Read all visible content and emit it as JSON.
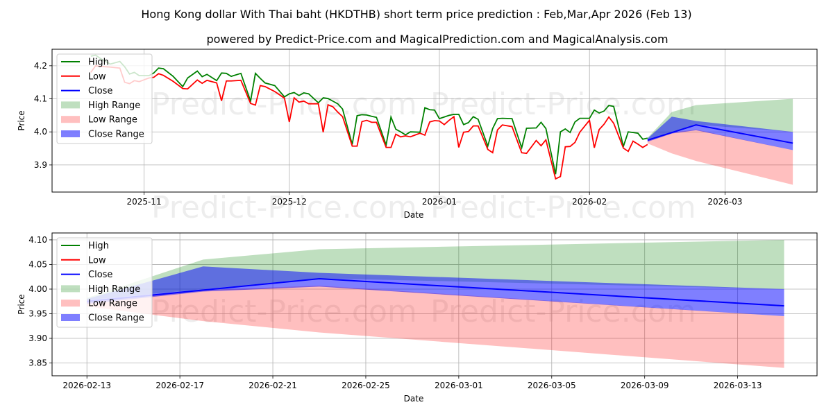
{
  "title": "Hong Kong dollar With Thai baht (HKDTHB) short term price prediction : Feb,Mar,Apr 2026 (Feb 13)",
  "subtitle": "powered by Predict-Price.com and MagicalPrediction.com and MagicalAnalysis.com",
  "watermark": "Predict-Price.com",
  "colors": {
    "high": "#008000",
    "low": "#ff0000",
    "close": "#0000ff",
    "high_range": "#008000",
    "low_range": "#ff0000",
    "close_range": "#0000ff"
  },
  "legend": [
    "High",
    "Low",
    "Close",
    "High Range",
    "Low Range",
    "Close Range"
  ],
  "chart_data": [
    {
      "type": "line",
      "xlabel": "Date",
      "ylabel": "Price",
      "xlim": [
        "2025-10-13",
        "2026-03-20"
      ],
      "ylim": [
        3.818,
        4.25
      ],
      "yticks": [
        3.9,
        4.0,
        4.1,
        4.2
      ],
      "ytick_labels": [
        "3.9",
        "4.0",
        "4.1",
        "4.2"
      ],
      "xticks": [
        "2025-11-01",
        "2025-12-01",
        "2026-01-01",
        "2026-02-01",
        "2026-03-01"
      ],
      "xtick_labels": [
        "2025-11",
        "2025-12",
        "2026-01",
        "2026-02",
        "2026-03"
      ],
      "grid": true,
      "legend_position": "top-left",
      "history": [
        [
          "2025-10-21",
          4.229,
          4.18
        ],
        [
          "2025-10-22",
          4.232,
          4.2
        ],
        [
          "2025-10-23",
          4.222,
          4.198
        ],
        [
          "2025-10-25",
          4.205,
          4.196
        ],
        [
          "2025-10-27",
          4.213,
          4.193
        ],
        [
          "2025-10-28",
          4.197,
          4.15
        ],
        [
          "2025-10-29",
          4.175,
          4.146
        ],
        [
          "2025-10-30",
          4.18,
          4.155
        ],
        [
          "2025-10-31",
          4.17,
          4.152
        ],
        [
          "2025-11-02",
          4.17,
          4.163
        ],
        [
          "2025-11-03",
          4.178,
          4.165
        ],
        [
          "2025-11-04",
          4.193,
          4.176
        ],
        [
          "2025-11-05",
          4.191,
          4.171
        ],
        [
          "2025-11-07",
          4.168,
          4.153
        ],
        [
          "2025-11-09",
          4.137,
          4.131
        ],
        [
          "2025-11-10",
          4.163,
          4.13
        ],
        [
          "2025-11-12",
          4.184,
          4.157
        ],
        [
          "2025-11-13",
          4.167,
          4.147
        ],
        [
          "2025-11-14",
          4.174,
          4.156
        ],
        [
          "2025-11-16",
          4.155,
          4.148
        ],
        [
          "2025-11-17",
          4.178,
          4.094
        ],
        [
          "2025-11-18",
          4.177,
          4.154
        ],
        [
          "2025-11-19",
          4.168,
          4.154
        ],
        [
          "2025-11-21",
          4.177,
          4.156
        ],
        [
          "2025-11-23",
          4.093,
          4.086
        ],
        [
          "2025-11-24",
          4.177,
          4.081
        ],
        [
          "2025-11-25",
          4.162,
          4.14
        ],
        [
          "2025-11-26",
          4.148,
          4.137
        ],
        [
          "2025-11-28",
          4.14,
          4.122
        ],
        [
          "2025-11-30",
          4.106,
          4.102
        ],
        [
          "2025-12-01",
          4.115,
          4.03
        ],
        [
          "2025-12-02",
          4.119,
          4.103
        ],
        [
          "2025-12-03",
          4.11,
          4.09
        ],
        [
          "2025-12-04",
          4.118,
          4.093
        ],
        [
          "2025-12-05",
          4.115,
          4.085
        ],
        [
          "2025-12-07",
          4.088,
          4.085
        ],
        [
          "2025-12-08",
          4.103,
          3.999
        ],
        [
          "2025-12-09",
          4.101,
          4.082
        ],
        [
          "2025-12-10",
          4.093,
          4.076
        ],
        [
          "2025-12-11",
          4.085,
          4.06
        ],
        [
          "2025-12-12",
          4.069,
          4.046
        ],
        [
          "2025-12-14",
          3.962,
          3.957
        ],
        [
          "2025-12-15",
          4.049,
          3.957
        ],
        [
          "2025-12-16",
          4.052,
          4.031
        ],
        [
          "2025-12-17",
          4.051,
          4.035
        ],
        [
          "2025-12-18",
          4.047,
          4.029
        ],
        [
          "2025-12-19",
          4.044,
          4.029
        ],
        [
          "2025-12-21",
          3.96,
          3.953
        ],
        [
          "2025-12-22",
          4.045,
          3.953
        ],
        [
          "2025-12-23",
          4.008,
          3.993
        ],
        [
          "2025-12-24",
          4.0,
          3.985
        ],
        [
          "2025-12-25",
          3.991,
          3.988
        ],
        [
          "2025-12-26",
          4.0,
          3.985
        ],
        [
          "2025-12-28",
          3.999,
          3.996
        ],
        [
          "2025-12-29",
          4.073,
          3.99
        ],
        [
          "2025-12-30",
          4.067,
          4.03
        ],
        [
          "2025-12-31",
          4.066,
          4.034
        ],
        [
          "2026-01-01",
          4.04,
          4.033
        ],
        [
          "2026-01-02",
          4.045,
          4.022
        ],
        [
          "2026-01-03",
          4.05,
          4.035
        ],
        [
          "2026-01-04",
          4.053,
          4.046
        ],
        [
          "2026-01-05",
          4.053,
          3.953
        ],
        [
          "2026-01-06",
          4.022,
          3.999
        ],
        [
          "2026-01-07",
          4.028,
          4.001
        ],
        [
          "2026-01-08",
          4.046,
          4.018
        ],
        [
          "2026-01-09",
          4.038,
          4.018
        ],
        [
          "2026-01-11",
          3.957,
          3.947
        ],
        [
          "2026-01-12",
          4.01,
          3.937
        ],
        [
          "2026-01-13",
          4.04,
          4.006
        ],
        [
          "2026-01-14",
          4.041,
          4.021
        ],
        [
          "2026-01-16",
          4.04,
          4.016
        ],
        [
          "2026-01-18",
          3.952,
          3.937
        ],
        [
          "2026-01-19",
          4.011,
          3.935
        ],
        [
          "2026-01-21",
          4.012,
          3.974
        ],
        [
          "2026-01-22",
          4.029,
          3.958
        ],
        [
          "2026-01-23",
          4.01,
          3.976
        ],
        [
          "2026-01-25",
          3.872,
          3.858
        ],
        [
          "2026-01-26",
          4.0,
          3.865
        ],
        [
          "2026-01-27",
          4.009,
          3.955
        ],
        [
          "2026-01-28",
          3.998,
          3.956
        ],
        [
          "2026-01-29",
          4.03,
          3.968
        ],
        [
          "2026-01-30",
          4.041,
          3.999
        ],
        [
          "2026-01-31",
          4.041,
          4.017
        ],
        [
          "2026-02-01",
          4.041,
          4.035
        ],
        [
          "2026-02-02",
          4.066,
          3.952
        ],
        [
          "2026-02-03",
          4.057,
          4.007
        ],
        [
          "2026-02-04",
          4.063,
          4.023
        ],
        [
          "2026-02-05",
          4.08,
          4.045
        ],
        [
          "2026-02-06",
          4.077,
          4.026
        ],
        [
          "2026-02-08",
          3.956,
          3.951
        ],
        [
          "2026-02-09",
          4.0,
          3.941
        ],
        [
          "2026-02-10",
          3.998,
          3.972
        ],
        [
          "2026-02-11",
          3.996,
          3.963
        ],
        [
          "2026-02-12",
          3.978,
          3.953
        ],
        [
          "2026-02-13",
          3.981,
          3.962
        ]
      ]
    },
    {
      "type": "area",
      "xlabel": "Date",
      "ylabel": "Price",
      "xlim": [
        "2026-02-11T12:00",
        "2026-03-16T10:00"
      ],
      "ylim": [
        3.824,
        4.114
      ],
      "yticks": [
        3.85,
        3.9,
        3.95,
        4.0,
        4.05,
        4.1
      ],
      "ytick_labels": [
        "3.85",
        "3.90",
        "3.95",
        "4.00",
        "4.05",
        "4.10"
      ],
      "xticks": [
        "2026-02-13",
        "2026-02-17",
        "2026-02-21",
        "2026-02-25",
        "2026-03-01",
        "2026-03-05",
        "2026-03-09",
        "2026-03-13"
      ],
      "xtick_labels": [
        "2026-02-13",
        "2026-02-17",
        "2026-02-21",
        "2026-02-25",
        "2026-03-01",
        "2026-03-05",
        "2026-03-09",
        "2026-03-13"
      ],
      "grid": true,
      "legend_position": "top-left"
    }
  ],
  "forecast": {
    "dates": [
      "2026-02-13",
      "2026-02-18",
      "2026-02-23",
      "2026-03-15"
    ],
    "close": [
      3.975,
      3.998,
      4.021,
      3.966
    ],
    "close_range_upper": [
      3.98,
      4.046,
      4.033,
      4.0
    ],
    "close_range_lower": [
      3.97,
      3.995,
      4.005,
      3.945
    ],
    "high_range_upper": [
      3.982,
      4.06,
      4.081,
      4.1
    ],
    "high_range_lower": [
      3.978,
      4.0,
      4.022,
      4.0
    ],
    "low_range_upper": [
      3.975,
      3.998,
      4.007,
      3.945
    ],
    "low_range_lower": [
      3.965,
      3.935,
      3.912,
      3.84
    ]
  }
}
